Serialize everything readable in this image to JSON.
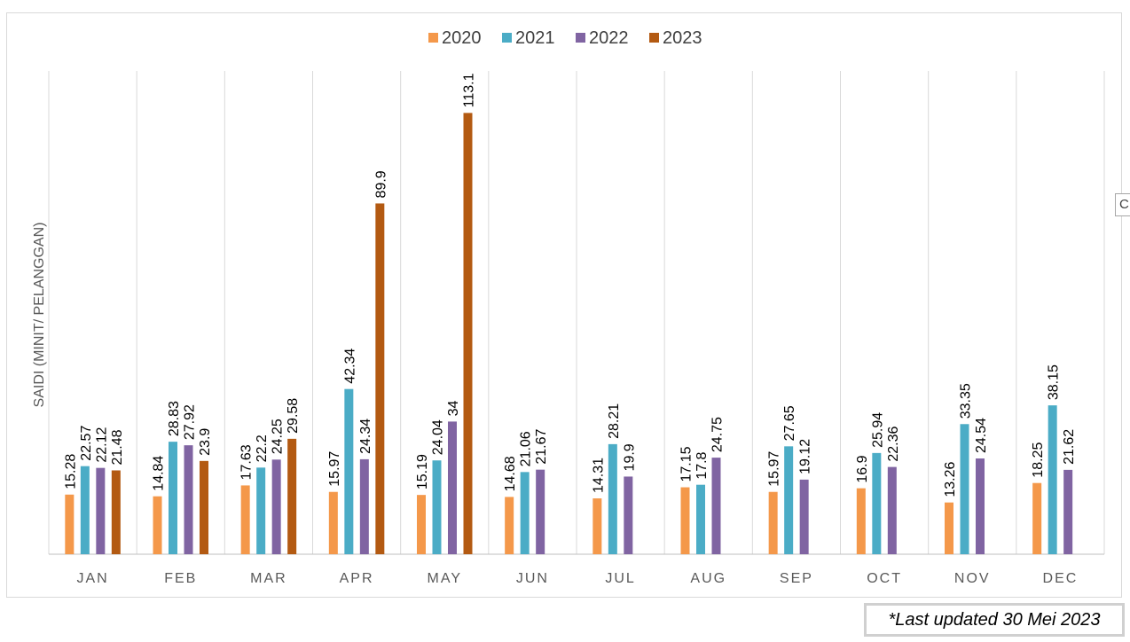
{
  "chart_data": {
    "type": "bar",
    "title": "",
    "xlabel": "",
    "ylabel": "SAIDI (MINIT/ PELANGGAN)",
    "categories": [
      "JAN",
      "FEB",
      "MAR",
      "APR",
      "MAY",
      "JUN",
      "JUL",
      "AUG",
      "SEP",
      "OCT",
      "NOV",
      "DEC"
    ],
    "series": [
      {
        "name": "2020",
        "color": "#f4984a",
        "values": [
          15.28,
          14.84,
          17.63,
          15.97,
          15.19,
          14.68,
          14.31,
          17.15,
          15.97,
          16.9,
          13.26,
          18.25
        ]
      },
      {
        "name": "2021",
        "color": "#4bacc6",
        "values": [
          22.57,
          28.83,
          22.2,
          42.34,
          24.04,
          21.06,
          28.21,
          17.8,
          27.65,
          25.94,
          33.35,
          38.15
        ]
      },
      {
        "name": "2022",
        "color": "#8064a2",
        "values": [
          22.12,
          27.92,
          24.25,
          24.34,
          34,
          21.67,
          19.9,
          24.75,
          19.12,
          22.36,
          24.54,
          21.62
        ]
      },
      {
        "name": "2023",
        "color": "#b35a12",
        "values": [
          21.48,
          23.9,
          29.58,
          89.9,
          113.1,
          null,
          null,
          null,
          null,
          null,
          null,
          null
        ]
      }
    ],
    "ylim": [
      0,
      120
    ],
    "grid": "vertical",
    "legend": "top-center",
    "data_labels": true
  },
  "side_button": {
    "label": "C"
  },
  "footnote": {
    "text": "*Last updated 30 Mei 2023"
  }
}
